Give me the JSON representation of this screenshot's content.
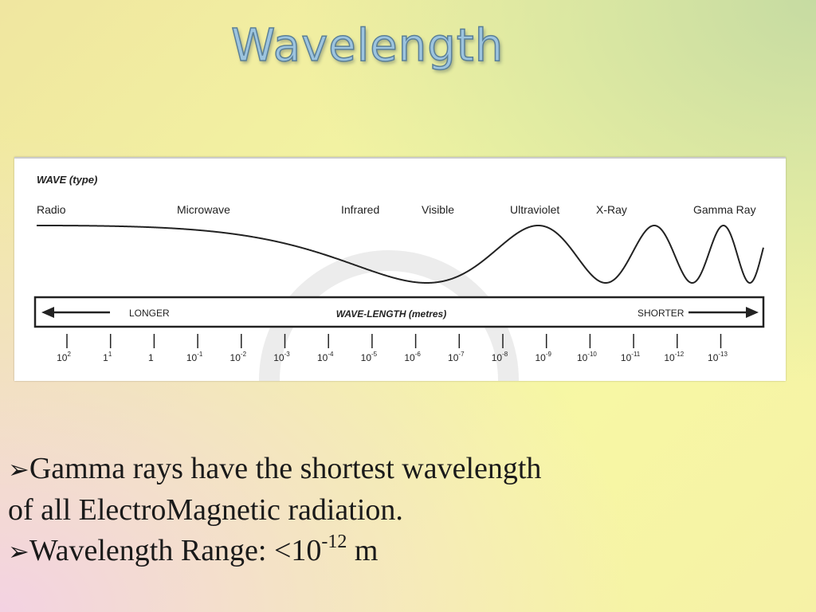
{
  "slide": {
    "title": "Wavelength"
  },
  "diagram": {
    "heading": "WAVE (type)",
    "wave_types": [
      "Radio",
      "Microwave",
      "Infrared",
      "Visible",
      "Ultraviolet",
      "X-Ray",
      "Gamma Ray"
    ],
    "band": {
      "left_label": "LONGER",
      "center_label": "WAVE-LENGTH (metres)",
      "right_label": "SHORTER"
    },
    "scale": [
      {
        "base": "10",
        "exp": "2"
      },
      {
        "base": "1",
        "exp": "1"
      },
      {
        "base": "1",
        "exp": ""
      },
      {
        "base": "10",
        "exp": "-1"
      },
      {
        "base": "10",
        "exp": "-2"
      },
      {
        "base": "10",
        "exp": "-3"
      },
      {
        "base": "10",
        "exp": "-4"
      },
      {
        "base": "10",
        "exp": "-5"
      },
      {
        "base": "10",
        "exp": "-6"
      },
      {
        "base": "10",
        "exp": "-7"
      },
      {
        "base": "10",
        "exp": "-8"
      },
      {
        "base": "10",
        "exp": "-9"
      },
      {
        "base": "10",
        "exp": "-10"
      },
      {
        "base": "10",
        "exp": "-11"
      },
      {
        "base": "10",
        "exp": "-12"
      },
      {
        "base": "10",
        "exp": "-13"
      }
    ]
  },
  "bullets": {
    "marker": "➢",
    "line1": "Gamma rays have the shortest wavelength",
    "line2": "of all ElectroMagnetic radiation.",
    "line3_prefix": "Wavelength Range: <10",
    "line3_exp": "-12",
    "line3_suffix": " m"
  },
  "colors": {
    "title_fill": "#9cc4df",
    "text": "#1a1a1a",
    "diagram_ink": "#222222"
  }
}
